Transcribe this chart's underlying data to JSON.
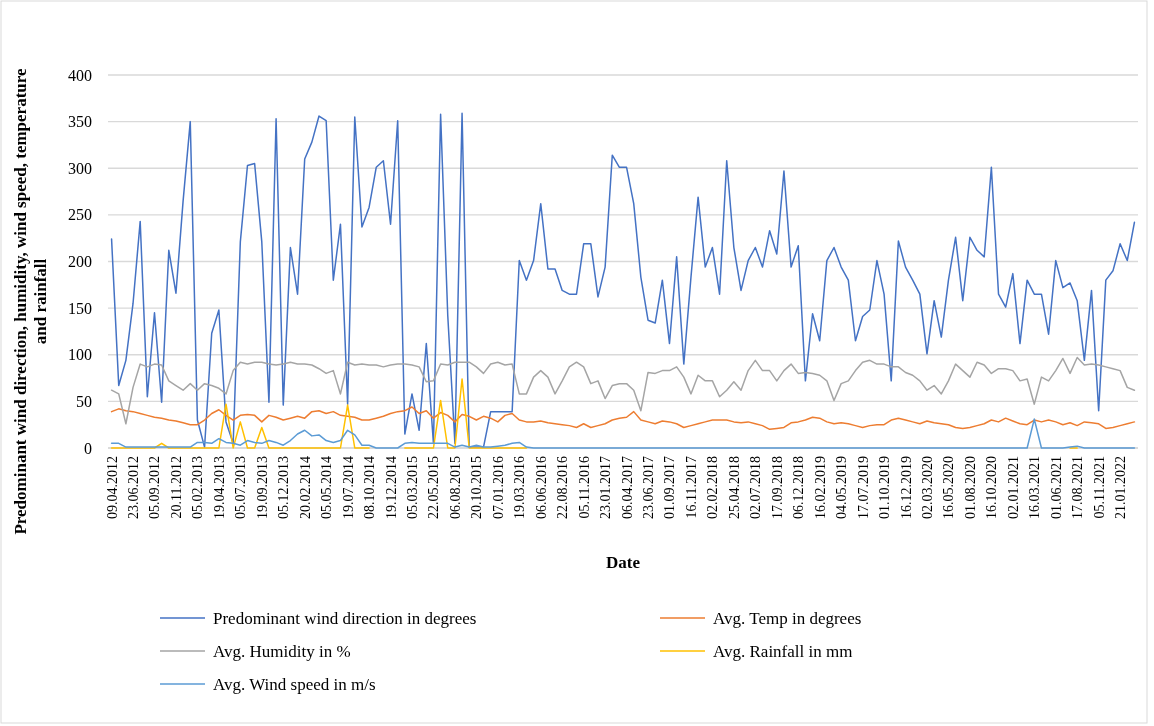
{
  "chart_data": {
    "type": "line",
    "xlabel": "Date",
    "ylabel": "Predominant wind direction, humidity, wind speed, temperature and rainfall",
    "categories": [
      "09.04.2012",
      null,
      null,
      "23.06.2012",
      null,
      null,
      "05.09.2012",
      null,
      null,
      "20.11.2012",
      null,
      null,
      "05.02.2013",
      null,
      null,
      "19.04.2013",
      null,
      null,
      "05.07.2013",
      null,
      null,
      "19.09.2013",
      null,
      null,
      "05.12.2013",
      null,
      null,
      "20.02.2014",
      null,
      null,
      "05.05.2014",
      null,
      null,
      "19.07.2014",
      null,
      null,
      "08.10.2014",
      null,
      null,
      "19.12.2014",
      null,
      null,
      "05.03.2015",
      null,
      null,
      "22.05.2015",
      null,
      null,
      "06.08.2015",
      null,
      null,
      "20.10.2015",
      null,
      null,
      "07.01.2016",
      null,
      null,
      "19.03.2016",
      null,
      null,
      "06.06.2016",
      null,
      null,
      "22.08.2016",
      null,
      null,
      "05.11.2016",
      null,
      null,
      "23.01.2017",
      null,
      null,
      "06.04.2017",
      null,
      null,
      "23.06.2017",
      null,
      null,
      "01.09.2017",
      null,
      null,
      "16.11.2017",
      null,
      null,
      "02.02.2018",
      null,
      null,
      "25.04.2018",
      null,
      null,
      "02.07.2018",
      null,
      null,
      "17.09.2018",
      null,
      null,
      "06.12.2018",
      null,
      null,
      "16.02.2019",
      null,
      null,
      "04.05.2019",
      null,
      null,
      "17.07.2019",
      null,
      null,
      "01.10.2019",
      null,
      null,
      "16.12.2019",
      null,
      null,
      "02.03.2020",
      null,
      null,
      "16.05.2020",
      null,
      null,
      "01.08.2020",
      null,
      null,
      "16.10.2020",
      null,
      null,
      "02.01.2021",
      null,
      null,
      "16.03.2021",
      null,
      null,
      "01.06.2021",
      null,
      null,
      "17.08.2021",
      null,
      null,
      "05.11.2021",
      null,
      null,
      "21.01.2022",
      null,
      null
    ],
    "series": [
      {
        "name": "Predominant wind direction in degrees",
        "color": "#4472c4",
        "values": [
          224,
          67,
          94,
          155,
          243,
          55,
          145,
          49,
          212,
          166,
          265,
          350,
          30,
          1,
          123,
          148,
          28,
          5,
          221,
          303,
          305,
          221,
          49,
          353,
          46,
          215,
          165,
          310,
          328,
          356,
          351,
          180,
          240,
          47,
          355,
          237,
          258,
          301,
          308,
          240,
          351,
          15,
          58,
          19,
          112,
          5,
          358,
          142,
          5,
          359,
          1,
          1,
          1,
          39,
          39,
          39,
          39,
          201,
          180,
          201,
          262,
          192,
          192,
          169,
          165,
          165,
          219,
          219,
          162,
          194,
          314,
          301,
          301,
          262,
          183,
          137,
          134,
          180,
          112,
          205,
          90,
          183,
          269,
          194,
          215,
          165,
          308,
          215,
          169,
          201,
          215,
          194,
          233,
          208,
          297,
          194,
          217,
          72,
          144,
          115,
          201,
          215,
          194,
          180,
          115,
          141,
          148,
          201,
          165,
          72,
          222,
          194,
          180,
          165,
          101,
          158,
          119,
          180,
          226,
          158,
          226,
          212,
          205,
          301,
          165,
          151,
          187,
          112,
          180,
          165,
          165,
          122,
          201,
          172,
          177,
          158,
          94,
          169,
          40,
          180,
          190,
          219,
          201,
          242
        ]
      },
      {
        "name": "Avg. Temp in degrees",
        "color": "#ed7d31",
        "values": [
          39,
          42,
          40,
          39,
          37,
          35,
          33,
          32,
          30,
          29,
          27,
          25,
          25,
          30,
          37,
          41,
          35,
          30,
          35,
          36,
          35,
          28,
          35,
          33,
          30,
          32,
          34,
          32,
          39,
          40,
          37,
          39,
          35,
          34,
          33,
          30,
          30,
          32,
          34,
          37,
          39,
          40,
          44,
          37,
          40,
          32,
          38,
          35,
          28,
          36,
          34,
          30,
          34,
          32,
          28,
          35,
          37,
          30,
          28,
          28,
          29,
          27,
          26,
          25,
          24,
          22,
          26,
          22,
          24,
          26,
          30,
          32,
          33,
          39,
          30,
          28,
          26,
          29,
          28,
          26,
          22,
          24,
          26,
          28,
          30,
          30,
          30,
          28,
          27,
          28,
          26,
          24,
          20,
          21,
          22,
          27,
          28,
          30,
          33,
          32,
          28,
          26,
          27,
          26,
          24,
          22,
          24,
          25,
          25,
          30,
          32,
          30,
          28,
          26,
          29,
          27,
          26,
          25,
          22,
          21,
          22,
          24,
          26,
          30,
          28,
          32,
          29,
          26,
          25,
          30,
          28,
          30,
          28,
          25,
          27,
          24,
          28,
          27,
          26,
          21,
          22,
          24,
          26,
          28
        ]
      },
      {
        "name": "Avg. Humidity in %",
        "color": "#a5a5a5",
        "values": [
          62,
          58,
          26,
          65,
          90,
          87,
          90,
          89,
          72,
          67,
          62,
          69,
          62,
          69,
          67,
          64,
          58,
          83,
          92,
          90,
          92,
          92,
          90,
          89,
          90,
          92,
          90,
          90,
          89,
          85,
          80,
          83,
          58,
          92,
          89,
          90,
          89,
          89,
          87,
          89,
          90,
          90,
          89,
          87,
          71,
          72,
          90,
          89,
          92,
          92,
          92,
          87,
          80,
          90,
          92,
          89,
          90,
          58,
          58,
          76,
          83,
          76,
          58,
          72,
          87,
          92,
          87,
          69,
          72,
          53,
          67,
          69,
          69,
          62,
          40,
          81,
          80,
          83,
          83,
          87,
          76,
          58,
          78,
          72,
          72,
          55,
          62,
          71,
          62,
          83,
          94,
          83,
          83,
          72,
          83,
          90,
          80,
          81,
          80,
          78,
          72,
          51,
          69,
          72,
          83,
          92,
          94,
          90,
          90,
          87,
          87,
          81,
          78,
          72,
          62,
          67,
          58,
          72,
          90,
          83,
          76,
          92,
          89,
          80,
          85,
          85,
          83,
          72,
          74,
          47,
          76,
          72,
          83,
          96,
          80,
          97,
          89,
          90,
          89,
          87,
          85,
          83,
          65,
          62
        ]
      },
      {
        "name": "Avg. Rainfall in mm",
        "color": "#ffc000",
        "values": [
          0,
          0,
          0,
          0,
          0,
          0,
          0,
          5,
          0,
          0,
          0,
          0,
          0,
          0,
          0,
          0,
          47,
          0,
          28,
          0,
          0,
          22,
          0,
          0,
          0,
          0,
          0,
          0,
          0,
          0,
          0,
          0,
          0,
          46,
          0,
          0,
          0,
          null,
          null,
          null,
          null,
          0,
          0,
          0,
          0,
          0,
          51,
          0,
          0,
          74,
          0,
          0,
          0,
          0,
          0,
          0,
          0,
          0,
          0,
          null,
          null,
          null,
          null,
          null,
          null,
          null,
          null,
          null,
          null,
          null,
          null,
          null,
          null,
          null,
          null,
          null,
          null,
          null,
          null,
          null,
          null,
          null,
          null,
          null,
          null,
          null,
          null,
          null,
          null,
          null,
          null,
          null,
          null,
          null,
          null,
          null,
          null,
          null,
          null,
          null,
          null,
          null,
          null,
          null,
          null,
          null,
          null,
          null,
          null,
          null,
          null,
          null,
          null,
          null,
          null,
          null,
          null,
          null,
          null,
          null,
          null,
          null,
          null,
          null,
          null,
          null,
          null,
          null,
          null,
          null,
          null,
          null,
          null,
          null,
          0,
          0,
          null,
          null,
          null,
          null,
          null,
          null,
          null,
          null
        ]
      },
      {
        "name": "Avg. Wind speed in m/s",
        "color": "#5b9bd5",
        "values": [
          5,
          5,
          1,
          1,
          1,
          1,
          1,
          1,
          1,
          1,
          1,
          1,
          6,
          6,
          5,
          10,
          6,
          5,
          3,
          8,
          6,
          5,
          8,
          6,
          3,
          8,
          15,
          19,
          13,
          14,
          8,
          6,
          8,
          19,
          14,
          3,
          3,
          0,
          0,
          0,
          0,
          5,
          6,
          5,
          5,
          5,
          5,
          5,
          1,
          3,
          1,
          3,
          1,
          1,
          2,
          3,
          5,
          6,
          1,
          0,
          0,
          0,
          0,
          0,
          0,
          0,
          0,
          0,
          0,
          0,
          0,
          0,
          0,
          0,
          0,
          0,
          0,
          0,
          0,
          0,
          0,
          0,
          0,
          0,
          0,
          0,
          0,
          0,
          0,
          0,
          0,
          0,
          0,
          0,
          0,
          0,
          0,
          0,
          0,
          0,
          0,
          0,
          0,
          0,
          0,
          0,
          0,
          0,
          0,
          0,
          0,
          0,
          0,
          0,
          0,
          0,
          0,
          0,
          0,
          0,
          0,
          0,
          0,
          0,
          0,
          0,
          0,
          0,
          0,
          31,
          0,
          0,
          0,
          0,
          1,
          2,
          0,
          0,
          0,
          0,
          0,
          0,
          0,
          0
        ]
      }
    ],
    "ylim": [
      0,
      400
    ],
    "yticks": [
      0,
      50,
      100,
      150,
      200,
      250,
      300,
      350,
      400
    ],
    "grid": "y",
    "legend": "bottom",
    "marker": "none",
    "line_style": "solid"
  }
}
